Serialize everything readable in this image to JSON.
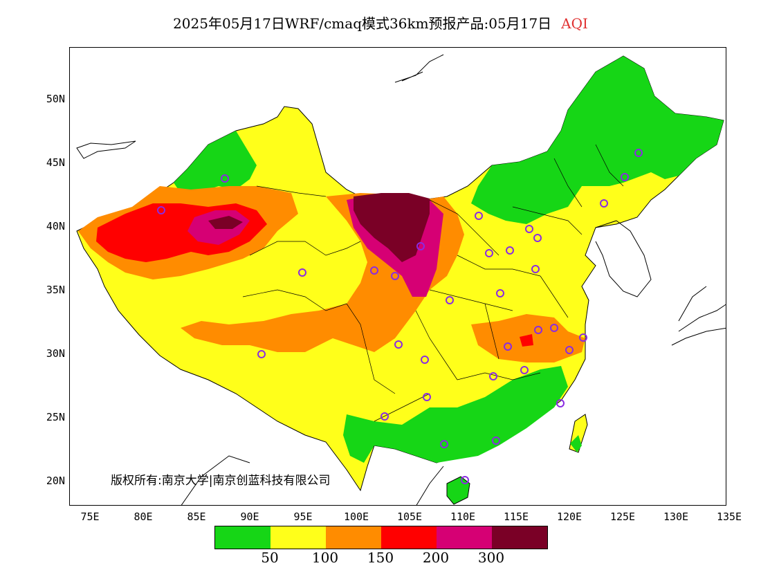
{
  "title": {
    "main": "2025年05月17日WRF/cmaq模式36km预报产品:05月17日",
    "variable": "AQI"
  },
  "axes": {
    "lat_labels": [
      "50N",
      "45N",
      "40N",
      "35N",
      "30N",
      "25N",
      "20N"
    ],
    "lon_labels": [
      "75E",
      "80E",
      "85E",
      "90E",
      "95E",
      "100E",
      "105E",
      "110E",
      "115E",
      "120E",
      "125E",
      "130E",
      "135E"
    ]
  },
  "copyright": "版权所有:南京大学|南京创蓝科技有限公司",
  "legend": {
    "colors": [
      "#16d616",
      "#ffff1a",
      "#ff8c00",
      "#ff0000",
      "#d60074",
      "#7a0026"
    ],
    "labels": [
      "50",
      "100",
      "150",
      "200",
      "300"
    ]
  },
  "colors": {
    "good": "#16d616",
    "moderate": "#ffff1a",
    "sensitive": "#ff8c00",
    "unhealthy": "#ff0000",
    "very_unhealthy": "#d60074",
    "hazardous": "#7a0026",
    "station_marker": "#8a2be2",
    "title_accent": "#e03030"
  }
}
